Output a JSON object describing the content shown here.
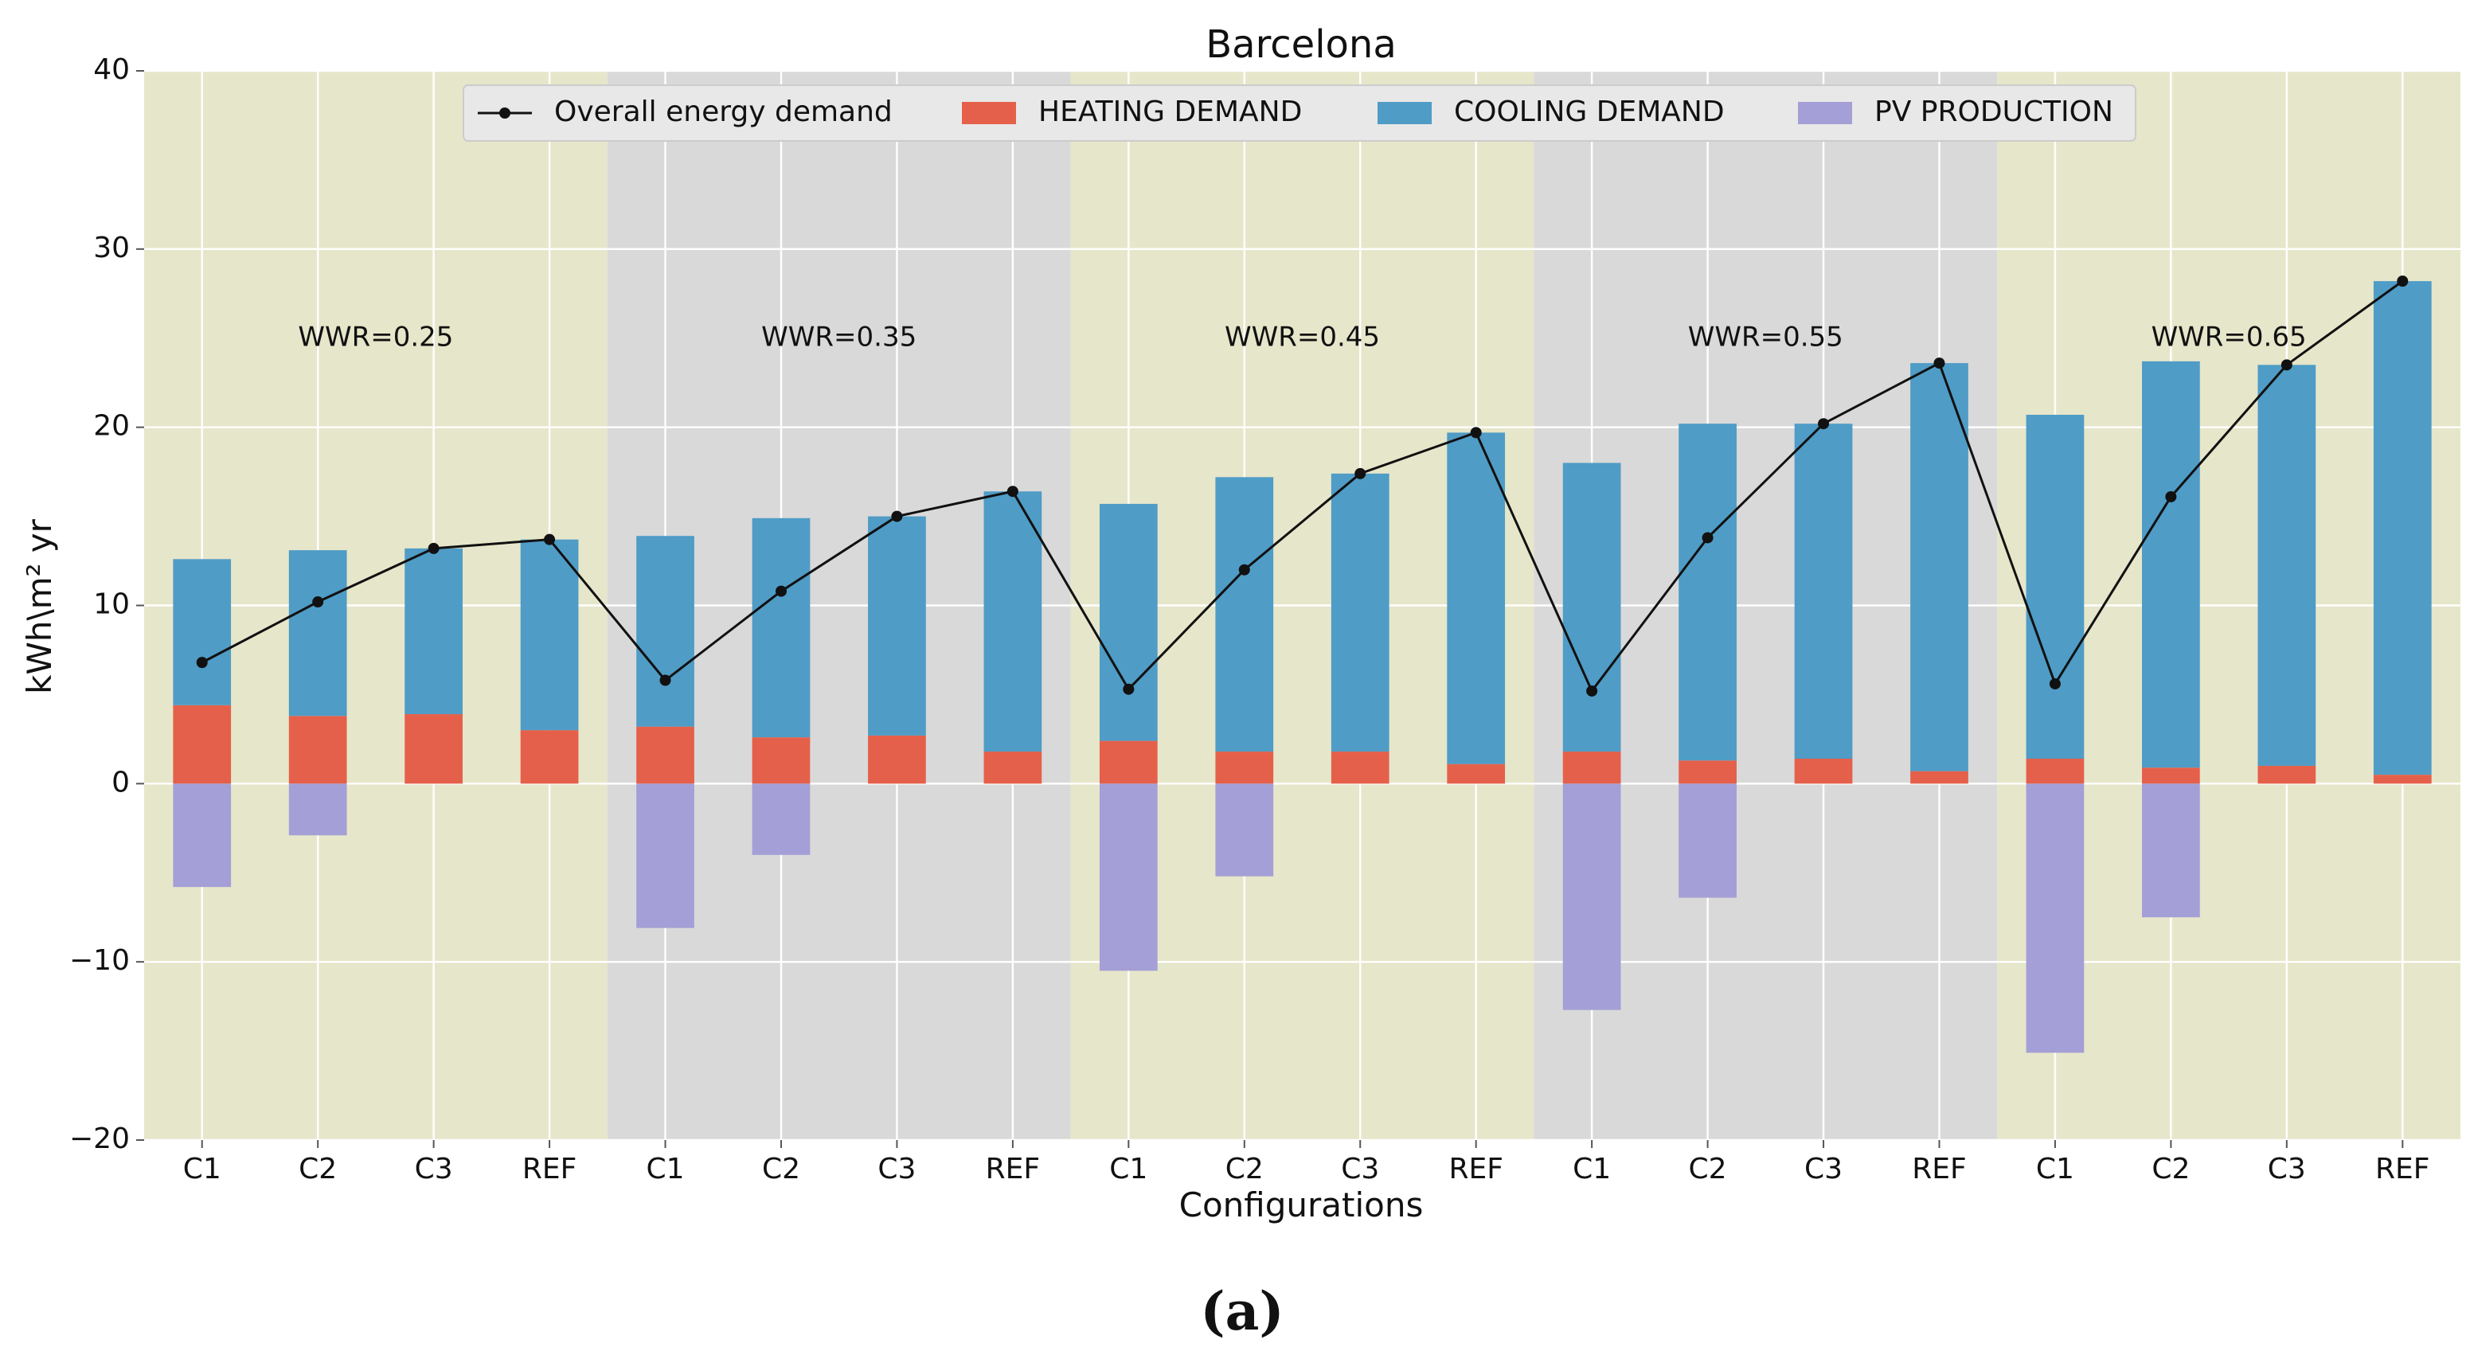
{
  "chart_data": {
    "type": "bar",
    "title": "Barcelona",
    "xlabel": "Configurations",
    "ylabel": "kWh\\m² yr",
    "ylim": [
      -20,
      40
    ],
    "yticks": [
      40,
      30,
      20,
      10,
      0,
      -10,
      -20
    ],
    "ytick_labels": [
      "40",
      "30",
      "20",
      "10",
      "0",
      "−10",
      "−20"
    ],
    "categories": [
      "C1",
      "C2",
      "C3",
      "REF",
      "C1",
      "C2",
      "C3",
      "REF",
      "C1",
      "C2",
      "C3",
      "REF",
      "C1",
      "C2",
      "C3",
      "REF",
      "C1",
      "C2",
      "C3",
      "REF"
    ],
    "groups": [
      {
        "label": "WWR=0.25",
        "color": "#e6e6ca"
      },
      {
        "label": "WWR=0.35",
        "color": "#d9d9d9"
      },
      {
        "label": "WWR=0.45",
        "color": "#e6e6ca"
      },
      {
        "label": "WWR=0.55",
        "color": "#d9d9d9"
      },
      {
        "label": "WWR=0.65",
        "color": "#e6e6ca"
      }
    ],
    "series": [
      {
        "name": "HEATING DEMAND",
        "kind": "bar",
        "color": "#e5604a",
        "values": [
          4.4,
          3.8,
          3.9,
          3.0,
          3.2,
          2.6,
          2.7,
          1.8,
          2.4,
          1.8,
          1.8,
          1.1,
          1.8,
          1.3,
          1.4,
          0.7,
          1.4,
          0.9,
          1.0,
          0.5
        ]
      },
      {
        "name": "COOLING DEMAND",
        "kind": "bar",
        "color": "#4f9cc6",
        "values": [
          8.2,
          9.3,
          9.3,
          10.7,
          10.7,
          12.3,
          12.3,
          14.6,
          13.3,
          15.4,
          15.6,
          18.6,
          16.2,
          18.9,
          18.8,
          22.9,
          19.3,
          22.8,
          22.5,
          27.7
        ]
      },
      {
        "name": "PV PRODUCTION",
        "kind": "bar",
        "color": "#a49fd6",
        "values": [
          -5.8,
          -2.9,
          0,
          0,
          -8.1,
          -4.0,
          0,
          0,
          -10.5,
          -5.2,
          0,
          0,
          -12.7,
          -6.4,
          0,
          0,
          -15.1,
          -7.5,
          0,
          0
        ]
      },
      {
        "name": "Overall energy demand",
        "kind": "line",
        "color": "#111111",
        "values": [
          6.8,
          10.2,
          13.2,
          13.7,
          5.8,
          10.8,
          15.0,
          16.4,
          5.3,
          12.0,
          17.4,
          19.7,
          5.2,
          13.8,
          20.2,
          23.6,
          5.6,
          16.1,
          23.5,
          28.2
        ]
      }
    ],
    "legend": {
      "placement": "top-center",
      "order": [
        "Overall energy demand",
        "HEATING DEMAND",
        "COOLING DEMAND",
        "PV PRODUCTION"
      ]
    },
    "grid": true,
    "caption": "(a)"
  }
}
